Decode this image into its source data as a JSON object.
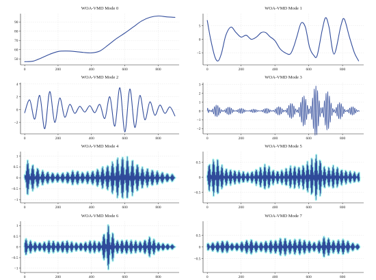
{
  "figure": {
    "colors": {
      "line": "#2f4a9a",
      "band": "#86efe7",
      "grid": "#dedede"
    }
  },
  "chart_data": [
    {
      "type": "line",
      "title": "WOA-VMD Mode 0",
      "x": [
        0,
        50,
        100,
        150,
        200,
        250,
        300,
        350,
        400,
        450,
        500,
        550,
        600,
        650,
        700,
        750,
        800,
        850,
        900
      ],
      "y": [
        47,
        47.5,
        51,
        55,
        58,
        58.5,
        58,
        57,
        56.5,
        58.5,
        65,
        72,
        78,
        84.5,
        91,
        95,
        96.5,
        95.5,
        95
      ],
      "xlim": [
        -25,
        925
      ],
      "ylim": [
        43.5,
        99
      ],
      "xticks": [
        0,
        200,
        400,
        600,
        800
      ],
      "yticks": [
        50,
        60,
        70,
        80,
        90
      ],
      "grid": true,
      "legend": "none"
    },
    {
      "type": "line",
      "title": "WOA-VMD Mode 1",
      "x": [
        0,
        20,
        45,
        65,
        85,
        110,
        140,
        170,
        200,
        230,
        260,
        290,
        320,
        345,
        370,
        400,
        430,
        460,
        490,
        510,
        530,
        555,
        580,
        605,
        630,
        650,
        680,
        700,
        720,
        750,
        790,
        810,
        840,
        870,
        895
      ],
      "y": [
        7,
        0,
        -6.5,
        -8,
        -5,
        1.5,
        4.5,
        2.5,
        0.8,
        1.5,
        0,
        0.8,
        2.5,
        2.5,
        1,
        -0.5,
        -3.5,
        -5,
        -5.5,
        -3,
        1,
        6,
        4.5,
        -3,
        -6,
        -6,
        3.5,
        8,
        4.5,
        -5.5,
        5,
        7.5,
        1,
        -5,
        -8
      ],
      "xlim": [
        -25,
        925
      ],
      "ylim": [
        -9.5,
        9.5
      ],
      "xticks": [
        0,
        200,
        400,
        600,
        800
      ],
      "yticks": [
        -5,
        0,
        5
      ],
      "grid": true,
      "legend": "none"
    },
    {
      "type": "line",
      "title": "WOA-VMD Mode 2",
      "x": [
        0,
        30,
        60,
        90,
        120,
        150,
        180,
        210,
        240,
        270,
        300,
        330,
        360,
        390,
        420,
        450,
        480,
        510,
        540,
        570,
        600,
        630,
        660,
        690,
        720,
        750,
        780,
        810,
        840,
        870,
        900
      ],
      "y": [
        -0.5,
        1.5,
        -1.5,
        2.2,
        -3,
        2.8,
        -2,
        1.8,
        -1.2,
        0.8,
        -0.6,
        0.5,
        -0.4,
        0.6,
        -0.5,
        0.8,
        -1.4,
        2,
        -2.6,
        3.4,
        -3.5,
        3.2,
        -2.8,
        2.2,
        -1.6,
        1.2,
        -0.9,
        0.7,
        -0.6,
        0.4,
        -1
      ],
      "xlim": [
        -25,
        925
      ],
      "ylim": [
        -3.8,
        4.2
      ],
      "xticks": [
        0,
        200,
        400,
        600,
        800
      ],
      "yticks": [
        -2,
        0,
        2,
        4
      ],
      "grid": true,
      "legend": "none"
    },
    {
      "type": "line",
      "title": "WOA-VMD Mode 3",
      "x": [
        0,
        50,
        100,
        150,
        200,
        250,
        300,
        350,
        400,
        450,
        500,
        550,
        600,
        650,
        700,
        750,
        800,
        850,
        900
      ],
      "y": [
        0.6,
        0.7,
        0.5,
        0.4,
        0.3,
        0.2,
        0.2,
        0.3,
        0.4,
        0.6,
        0.9,
        1.4,
        2.3,
        3,
        2.5,
        1.3,
        0.8,
        0.5,
        0.4
      ],
      "xlim": [
        -25,
        925
      ],
      "ylim": [
        -2.6,
        3.2
      ],
      "xticks": [
        0,
        200,
        400,
        600,
        800
      ],
      "yticks": [
        -2,
        -1,
        0,
        1,
        2,
        3
      ],
      "grid": true,
      "legend": "none"
    },
    {
      "type": "line",
      "title": "WOA-VMD Mode 4",
      "x": [
        0,
        50,
        100,
        150,
        200,
        250,
        300,
        350,
        400,
        450,
        500,
        550,
        600,
        650,
        700,
        750,
        800,
        850,
        900
      ],
      "y": [
        0.9,
        0.6,
        0.35,
        0.25,
        0.2,
        0.25,
        0.35,
        0.25,
        0.3,
        0.45,
        0.6,
        0.9,
        1.05,
        0.8,
        0.5,
        0.4,
        0.3,
        0.2,
        0.15
      ],
      "xlim": [
        -25,
        925
      ],
      "ylim": [
        -1.15,
        1.2
      ],
      "xticks": [
        0,
        200,
        400,
        600,
        800
      ],
      "yticks": [
        -1,
        -0.5,
        0,
        0.5,
        1
      ],
      "grid": true,
      "legend": "none"
    },
    {
      "type": "line",
      "title": "WOA-VMD Mode 5",
      "x": [
        0,
        50,
        100,
        150,
        200,
        250,
        300,
        350,
        400,
        450,
        500,
        550,
        600,
        650,
        700,
        750,
        800,
        850,
        900
      ],
      "y": [
        0.4,
        0.7,
        0.3,
        0.25,
        0.2,
        0.15,
        0.3,
        0.45,
        0.2,
        0.25,
        0.4,
        0.35,
        0.55,
        0.8,
        0.3,
        0.4,
        0.25,
        0.2,
        0.15
      ],
      "xlim": [
        -25,
        925
      ],
      "ylim": [
        -0.85,
        0.85
      ],
      "xticks": [
        0,
        200,
        400,
        600,
        800
      ],
      "yticks": [
        -0.5,
        0,
        0.5
      ],
      "grid": true,
      "legend": "none"
    },
    {
      "type": "line",
      "title": "WOA-VMD Mode 6",
      "x": [
        0,
        50,
        100,
        150,
        200,
        250,
        300,
        350,
        400,
        450,
        500,
        550,
        600,
        650,
        700,
        750,
        800,
        850,
        900
      ],
      "y": [
        0.4,
        0.25,
        0.2,
        0.3,
        0.25,
        0.3,
        0.2,
        0.2,
        0.3,
        0.25,
        1.1,
        0.3,
        0.35,
        0.3,
        0.25,
        0.5,
        0.2,
        0.15,
        0.1
      ],
      "xlim": [
        -25,
        925
      ],
      "ylim": [
        -1.2,
        1.2
      ],
      "xticks": [
        0,
        200,
        400,
        600,
        800
      ],
      "yticks": [
        -1,
        -0.5,
        0,
        0.5,
        1
      ],
      "grid": true,
      "legend": "none"
    },
    {
      "type": "line",
      "title": "WOA-VMD Mode 7",
      "x": [
        0,
        50,
        100,
        150,
        200,
        250,
        300,
        350,
        400,
        450,
        500,
        550,
        600,
        650,
        700,
        750,
        800,
        850,
        900
      ],
      "y": [
        0.15,
        0.2,
        0.3,
        0.15,
        0.2,
        0.35,
        0.2,
        0.25,
        0.3,
        0.4,
        0.3,
        0.35,
        0.25,
        0.2,
        0.5,
        0.25,
        0.35,
        0.2,
        0.1
      ],
      "xlim": [
        -25,
        925
      ],
      "ylim": [
        -1.1,
        1.1
      ],
      "xticks": [
        0,
        200,
        400,
        600,
        800
      ],
      "yticks": [
        -0.5,
        0,
        0.5
      ],
      "grid": true,
      "legend": "none"
    }
  ]
}
